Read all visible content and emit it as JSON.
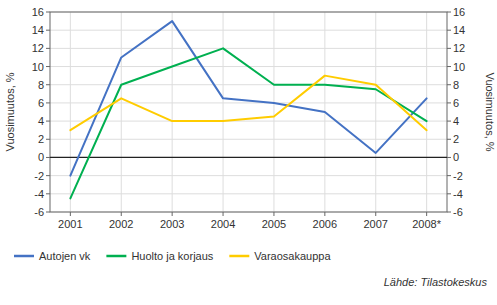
{
  "chart_data": {
    "type": "line",
    "x": [
      2001,
      2002,
      2003,
      2004,
      2005,
      2006,
      2007,
      2008
    ],
    "xlim": [
      2000.6,
      2008.4
    ],
    "xticks": [
      2001,
      2002,
      2003,
      2004,
      2005,
      2006,
      2007,
      {
        "value": 2008,
        "label": "2008*"
      }
    ],
    "series": [
      {
        "name": "Autojen vk",
        "color": "#4472C4",
        "values": [
          -2.0,
          11.0,
          15.0,
          6.5,
          6.0,
          5.0,
          0.5,
          6.5
        ]
      },
      {
        "name": "Huolto ja korjaus",
        "color": "#00B050",
        "values": [
          -4.5,
          8.0,
          10.0,
          12.0,
          8.0,
          8.0,
          7.5,
          4.0
        ]
      },
      {
        "name": "Varaosakauppa",
        "color": "#FFCC00",
        "values": [
          3.0,
          6.5,
          4.0,
          4.0,
          4.5,
          9.0,
          8.0,
          3.0
        ]
      }
    ],
    "ylabel": "Vuosimuutos, %",
    "ylim": [
      -6,
      16
    ],
    "yticks": [
      -6,
      -4,
      -2,
      0,
      2,
      4,
      6,
      8,
      10,
      12,
      14,
      16
    ],
    "y2label": "Vuosimuutos, %",
    "y2lim": [
      -6,
      16
    ],
    "y2ticks": [
      -6,
      -4,
      -2,
      0,
      2,
      4,
      6,
      8,
      10,
      12,
      14,
      16
    ],
    "grid": true,
    "legend": "lower left",
    "annotations": [
      "Lähde: Tilastokeskus"
    ]
  }
}
